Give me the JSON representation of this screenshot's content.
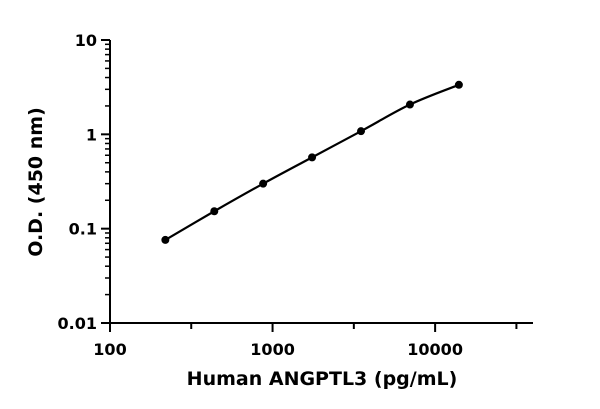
{
  "chart_data": {
    "type": "scatter",
    "title": "",
    "xlabel": "Human ANGPTL3 (pg/mL)",
    "ylabel": "O.D. (450 nm)",
    "xscale": "log",
    "yscale": "log",
    "xlim": [
      100,
      40000
    ],
    "ylim": [
      0.01,
      10
    ],
    "xticks": [
      "100",
      "1000",
      "10000"
    ],
    "yticks": [
      "0.01",
      "0.1",
      "1",
      "10"
    ],
    "grid": false,
    "legend": "none",
    "fit_line": true,
    "color": "#000000",
    "series": [
      {
        "x": [
          219,
          438,
          875,
          1750,
          3500,
          7000,
          14000
        ],
        "y": [
          0.076,
          0.153,
          0.3,
          0.57,
          1.08,
          2.07,
          3.35
        ]
      }
    ]
  }
}
